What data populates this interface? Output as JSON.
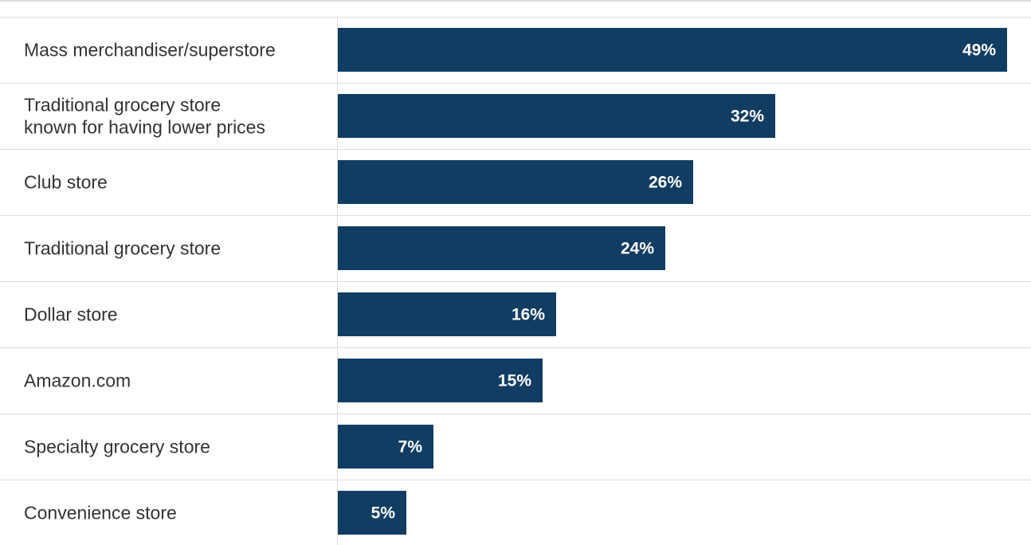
{
  "chart_data": {
    "type": "bar",
    "orientation": "horizontal",
    "categories": [
      "Mass merchandiser/superstore",
      "Traditional grocery store\nknown for having lower prices",
      "Club store",
      "Traditional grocery store",
      "Dollar store",
      "Amazon.com",
      "Specialty grocery store",
      "Convenience store"
    ],
    "values": [
      49,
      32,
      26,
      24,
      16,
      15,
      7,
      5
    ],
    "value_labels": [
      "49%",
      "32%",
      "26%",
      "24%",
      "16%",
      "15%",
      "7%",
      "5%"
    ],
    "title": "",
    "xlabel": "",
    "ylabel": "",
    "xlim": [
      0,
      49
    ],
    "grid": "horizontal row separators",
    "legend": "none",
    "colors": {
      "bar": "#123d63",
      "value_label": "#ffffff",
      "category_label": "#333333",
      "gridline": "#dddddd"
    }
  }
}
